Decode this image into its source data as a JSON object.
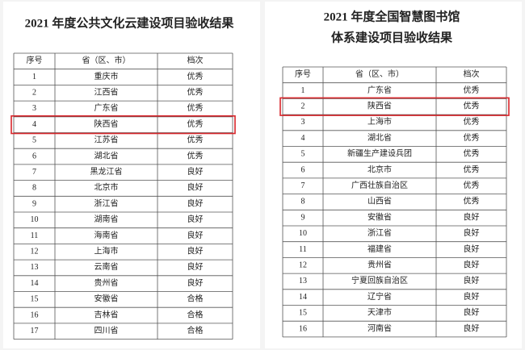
{
  "left": {
    "title": "2021 年度公共文化云建设项目验收结果",
    "table": {
      "header": [
        "序号",
        "省（区、市）",
        "档次"
      ],
      "rows": [
        [
          "1",
          "重庆市",
          "优秀"
        ],
        [
          "2",
          "江西省",
          "优秀"
        ],
        [
          "3",
          "广东省",
          "优秀"
        ],
        [
          "4",
          "陕西省",
          "优秀"
        ],
        [
          "5",
          "江苏省",
          "优秀"
        ],
        [
          "6",
          "湖北省",
          "优秀"
        ],
        [
          "7",
          "黑龙江省",
          "良好"
        ],
        [
          "8",
          "北京市",
          "良好"
        ],
        [
          "9",
          "浙江省",
          "良好"
        ],
        [
          "10",
          "湖南省",
          "良好"
        ],
        [
          "11",
          "海南省",
          "良好"
        ],
        [
          "12",
          "上海市",
          "良好"
        ],
        [
          "13",
          "云南省",
          "良好"
        ],
        [
          "14",
          "贵州省",
          "良好"
        ],
        [
          "15",
          "安徽省",
          "合格"
        ],
        [
          "16",
          "吉林省",
          "合格"
        ],
        [
          "17",
          "四川省",
          "合格"
        ]
      ]
    }
  },
  "right": {
    "title": [
      "2021 年度全国智慧图书馆",
      "体系建设项目验收结果"
    ],
    "table": {
      "header": [
        "序号",
        "省（区、市）",
        "档次"
      ],
      "rows": [
        [
          "1",
          "广东省",
          "优秀"
        ],
        [
          "2",
          "陕西省",
          "优秀"
        ],
        [
          "3",
          "上海市",
          "优秀"
        ],
        [
          "4",
          "湖北省",
          "优秀"
        ],
        [
          "5",
          "新疆生产建设兵团",
          "优秀"
        ],
        [
          "6",
          "北京市",
          "优秀"
        ],
        [
          "7",
          "广西壮族自治区",
          "优秀"
        ],
        [
          "8",
          "山西省",
          "优秀"
        ],
        [
          "9",
          "安徽省",
          "良好"
        ],
        [
          "10",
          "浙江省",
          "良好"
        ],
        [
          "11",
          "福建省",
          "良好"
        ],
        [
          "12",
          "贵州省",
          "良好"
        ],
        [
          "13",
          "宁夏回族自治区",
          "良好"
        ],
        [
          "14",
          "辽宁省",
          "良好"
        ],
        [
          "15",
          "天津市",
          "良好"
        ],
        [
          "16",
          "河南省",
          "良好"
        ]
      ]
    }
  }
}
